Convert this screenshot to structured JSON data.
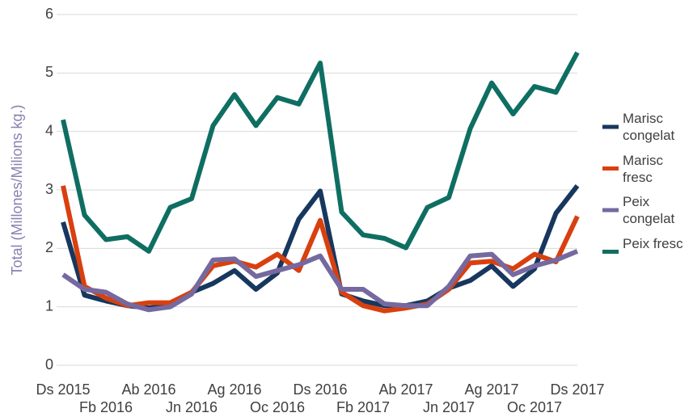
{
  "chart_data": {
    "type": "line",
    "y_label": "Total (Millones/Milions kg.)",
    "categories": [
      "Ds 2015",
      null,
      "Fb 2016",
      null,
      "Ab 2016",
      null,
      "Jn 2016",
      null,
      "Ag 2016",
      null,
      "Oc 2016",
      null,
      "Ds 2016",
      null,
      "Fb 2017",
      null,
      "Ab 2017",
      null,
      "Jn 2017",
      null,
      "Ag 2017",
      null,
      "Oc 2017",
      null,
      "Ds 2017"
    ],
    "series": [
      {
        "name": "Marisc congelat",
        "color": "#17375e",
        "values": [
          2.45,
          1.2,
          1.1,
          1.02,
          0.98,
          1.02,
          1.25,
          1.4,
          1.62,
          1.3,
          1.58,
          2.5,
          2.98,
          1.22,
          1.1,
          1.02,
          1.02,
          1.1,
          1.32,
          1.45,
          1.7,
          1.35,
          1.65,
          2.6,
          3.07
        ]
      },
      {
        "name": "Marisc fresc",
        "color": "#d9400f",
        "values": [
          3.07,
          1.35,
          1.15,
          1.02,
          1.07,
          1.07,
          1.25,
          1.7,
          1.78,
          1.68,
          1.9,
          1.62,
          2.48,
          1.25,
          1.02,
          0.93,
          0.98,
          1.05,
          1.3,
          1.75,
          1.78,
          1.65,
          1.9,
          1.77,
          2.55
        ]
      },
      {
        "name": "Peix congelat",
        "color": "#7569a0",
        "values": [
          1.55,
          1.3,
          1.25,
          1.05,
          0.95,
          1.0,
          1.22,
          1.8,
          1.82,
          1.52,
          1.62,
          1.72,
          1.87,
          1.3,
          1.3,
          1.05,
          1.02,
          1.02,
          1.35,
          1.87,
          1.9,
          1.55,
          1.7,
          1.8,
          1.95
        ]
      },
      {
        "name": "Peix fresc",
        "color": "#0f6e62",
        "values": [
          4.2,
          2.57,
          2.15,
          2.2,
          1.95,
          2.7,
          2.85,
          4.1,
          4.63,
          4.1,
          4.58,
          4.47,
          5.17,
          2.62,
          2.23,
          2.17,
          2.01,
          2.7,
          2.87,
          4.05,
          4.83,
          4.3,
          4.77,
          4.67,
          5.35
        ]
      }
    ],
    "ylim": [
      0,
      6
    ],
    "yticks": [
      0,
      1,
      2,
      3,
      4,
      5,
      6
    ],
    "grid": true,
    "legend": "right"
  }
}
